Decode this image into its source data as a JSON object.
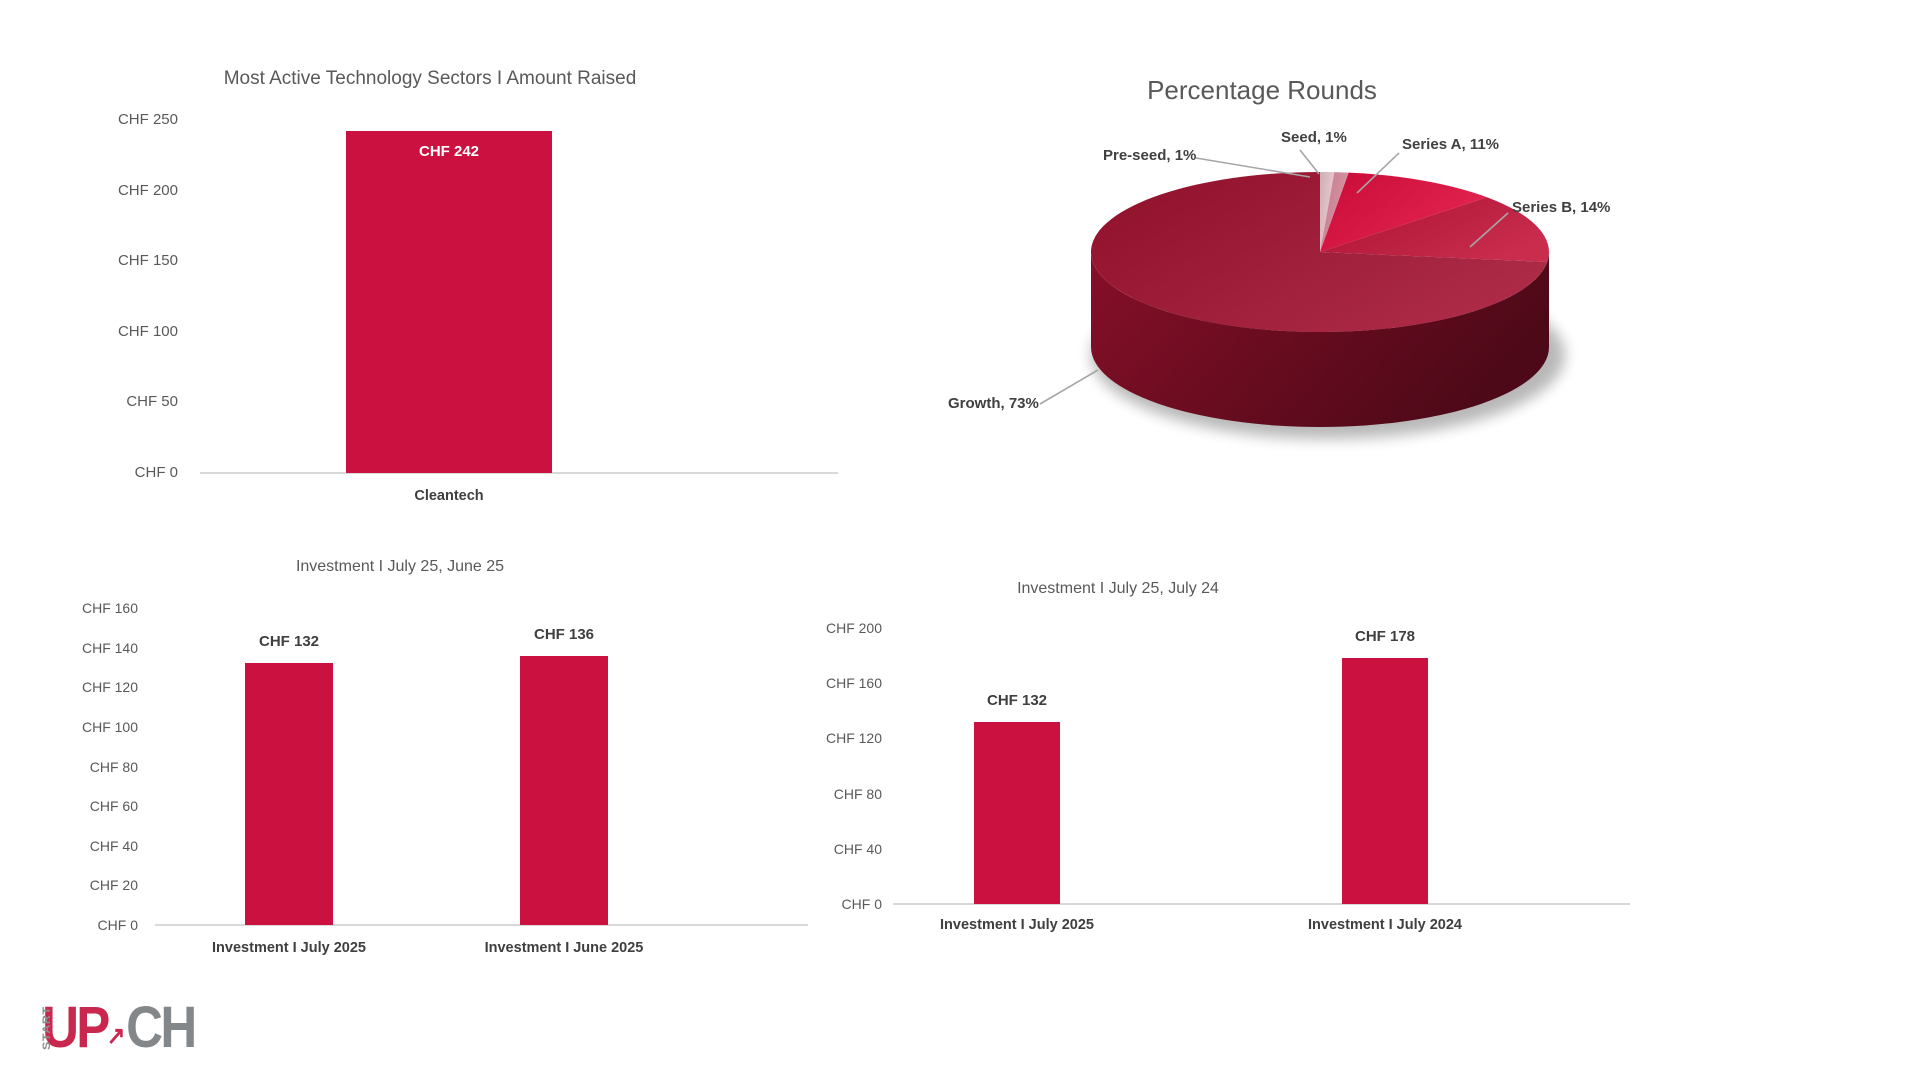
{
  "colors": {
    "bar": "#CB1140",
    "axis_line": "#D9D9D9",
    "title_text": "#595959",
    "tick_text": "#595959",
    "label_text": "#3F3F3F",
    "bar_label_inside": "#FFFFFF",
    "leader_line": "#A6A6A6",
    "pie_side_dark": "#8D0E28"
  },
  "logo": {
    "start": "START",
    "up": "UP",
    "arrow": "↗",
    "ch": "CH",
    "red": "#C9274E",
    "gray": "#84878A"
  },
  "chart_data": [
    {
      "type": "bar",
      "title": "Most Active Technology Sectors I Amount Raised",
      "categories": [
        "Cleantech"
      ],
      "values": [
        242
      ],
      "value_labels": [
        "CHF 242"
      ],
      "yticks": [
        "CHF 250",
        "CHF 200",
        "CHF 150",
        "CHF 100",
        "CHF 50",
        "CHF 0"
      ],
      "ylim": [
        0,
        250
      ],
      "ytick_step": 50,
      "grid": false,
      "value_label_position": "inside-top"
    },
    {
      "type": "pie",
      "title": "Percentage Rounds",
      "style": "3d",
      "slices": [
        {
          "name": "Pre-seed",
          "label": "Pre-seed, 1%",
          "value": 1,
          "color": "#EBC6CF"
        },
        {
          "name": "Seed",
          "label": "Seed, 1%",
          "value": 1,
          "color": "#D98B9D"
        },
        {
          "name": "Series A",
          "label": "Series A, 11%",
          "value": 11,
          "color": "#E20D3F"
        },
        {
          "name": "Series B",
          "label": "Series B, 14%",
          "value": 14,
          "color": "#C31439"
        },
        {
          "name": "Growth",
          "label": "Growth, 73%",
          "value": 73,
          "color": "#A31231"
        }
      ],
      "legend": "none",
      "labels_position": "outside-with-leader-lines"
    },
    {
      "type": "bar",
      "title": "Investment I July 25, June 25",
      "categories": [
        "Investment I July 2025",
        "Investment I June 2025"
      ],
      "values": [
        132,
        136
      ],
      "value_labels": [
        "CHF 132",
        "CHF 136"
      ],
      "yticks": [
        "CHF 160",
        "CHF 140",
        "CHF 120",
        "CHF 100",
        "CHF 80",
        "CHF 60",
        "CHF 40",
        "CHF 20",
        "CHF 0"
      ],
      "ylim": [
        0,
        160
      ],
      "ytick_step": 20,
      "grid": false,
      "value_label_position": "above"
    },
    {
      "type": "bar",
      "title": "Investment I July 25, July 24",
      "categories": [
        "Investment I July 2025",
        "Investment I July 2024"
      ],
      "values": [
        132,
        178
      ],
      "value_labels": [
        "CHF 132",
        "CHF 178"
      ],
      "yticks": [
        "CHF 200",
        "CHF 160",
        "CHF 120",
        "CHF 80",
        "CHF 40",
        "CHF 0"
      ],
      "ylim": [
        0,
        200
      ],
      "ytick_step": 40,
      "grid": false,
      "value_label_position": "above"
    }
  ]
}
